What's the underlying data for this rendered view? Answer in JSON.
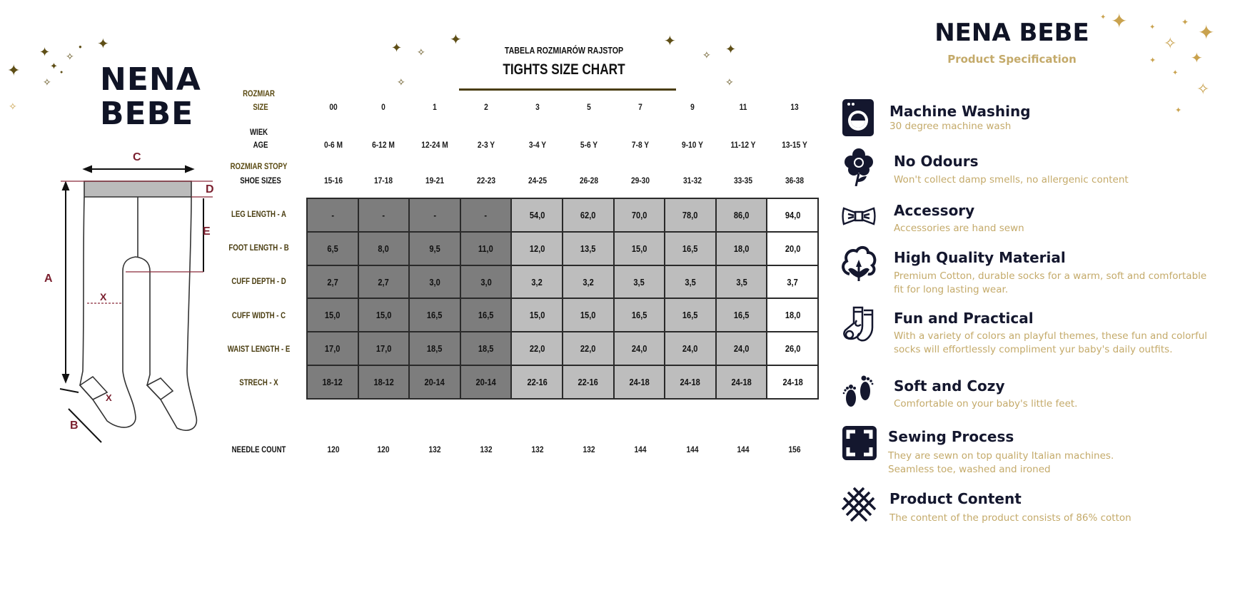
{
  "brand": {
    "logo_line1": "NENA",
    "logo_line2": "BEBE",
    "logo_full": "NENA BEBE"
  },
  "chart_header": {
    "title_pl": "TABELA ROZMIARÓW RAJSTOP",
    "title_en": "TIGHTS SIZE CHART"
  },
  "diagram": {
    "labels": {
      "a": "A",
      "b": "B",
      "c": "C",
      "d": "D",
      "e": "E",
      "x": "X"
    }
  },
  "size_table": {
    "header_rows": [
      {
        "label_pl": "ROZMIAR",
        "label_en": "SIZE",
        "values": [
          "00",
          "0",
          "1",
          "2",
          "3",
          "5",
          "7",
          "9",
          "11",
          "13"
        ]
      },
      {
        "label_pl": "WIEK",
        "label_en": "AGE",
        "values": [
          "0-6 M",
          "6-12 M",
          "12-24 M",
          "2-3 Y",
          "3-4 Y",
          "5-6 Y",
          "7-8 Y",
          "9-10 Y",
          "11-12 Y",
          "13-15 Y"
        ]
      },
      {
        "label_pl": "ROZMIAR STOPY",
        "label_en": "SHOE SIZES",
        "values": [
          "15-16",
          "17-18",
          "19-21",
          "22-23",
          "24-25",
          "26-28",
          "29-30",
          "31-32",
          "33-35",
          "36-38"
        ]
      }
    ],
    "column_shades": [
      "#7d7d7d",
      "#7d7d7d",
      "#7d7d7d",
      "#7d7d7d",
      "#bdbdbd",
      "#bdbdbd",
      "#bdbdbd",
      "#bdbdbd",
      "#bdbdbd",
      "#ffffff"
    ],
    "rows": [
      {
        "label": "LEG LENGTH - A",
        "values": [
          "-",
          "-",
          "-",
          "-",
          "54,0",
          "62,0",
          "70,0",
          "78,0",
          "86,0",
          "94,0"
        ]
      },
      {
        "label": "FOOT LENGTH - B",
        "values": [
          "6,5",
          "8,0",
          "9,5",
          "11,0",
          "12,0",
          "13,5",
          "15,0",
          "16,5",
          "18,0",
          "20,0"
        ]
      },
      {
        "label": "CUFF DEPTH - D",
        "values": [
          "2,7",
          "2,7",
          "3,0",
          "3,0",
          "3,2",
          "3,2",
          "3,5",
          "3,5",
          "3,5",
          "3,7"
        ]
      },
      {
        "label": "CUFF WIDTH - C",
        "values": [
          "15,0",
          "15,0",
          "16,5",
          "16,5",
          "15,0",
          "15,0",
          "16,5",
          "16,5",
          "16,5",
          "18,0"
        ]
      },
      {
        "label": "WAIST LENGTH - E",
        "values": [
          "17,0",
          "17,0",
          "18,5",
          "18,5",
          "22,0",
          "22,0",
          "24,0",
          "24,0",
          "24,0",
          "26,0"
        ]
      },
      {
        "label": "STRECH - X",
        "values": [
          "18-12",
          "18-12",
          "20-14",
          "20-14",
          "22-16",
          "22-16",
          "24-18",
          "24-18",
          "24-18",
          "24-18"
        ]
      }
    ],
    "needle_count": {
      "label": "NEEDLE COUNT",
      "values": [
        "120",
        "120",
        "132",
        "132",
        "132",
        "132",
        "144",
        "144",
        "144",
        "156"
      ]
    }
  },
  "spec": {
    "subtitle": "Product Specification",
    "colors": {
      "title": "#14172e",
      "desc": "#c4aa6a",
      "accent": "#c9a24e"
    },
    "items": [
      {
        "icon": "washing-machine-icon",
        "title": "Machine Washing",
        "desc": [
          "30 degree machine wash"
        ]
      },
      {
        "icon": "flower-icon",
        "title": "No Odours",
        "desc": [
          "Won't collect damp smells, no allergenic content"
        ]
      },
      {
        "icon": "bow-icon",
        "title": "Accessory",
        "desc": [
          "Accessories are hand sewn"
        ]
      },
      {
        "icon": "cotton-icon",
        "title": "High Quality Material",
        "desc": [
          "Premium Cotton, durable socks for a warm, soft and comfortable",
          "fit for long lasting wear."
        ]
      },
      {
        "icon": "socks-icon",
        "title": "Fun and Practical",
        "desc": [
          "With a variety of colors an playful themes, these fun and colorful",
          "socks will effortlessly compliment yur baby's daily outfits."
        ]
      },
      {
        "icon": "footprints-icon",
        "title": "Soft and Cozy",
        "desc": [
          "Comfortable on your baby's little feet."
        ]
      },
      {
        "icon": "sewing-frame-icon",
        "title": "Sewing Process",
        "desc": [
          "They are sewn on top quality Italian machines.",
          "Seamless toe, washed and ironed"
        ]
      },
      {
        "icon": "mesh-icon",
        "title": "Product Content",
        "desc": [
          "The content of the product consists of 86% cotton"
        ]
      }
    ]
  }
}
